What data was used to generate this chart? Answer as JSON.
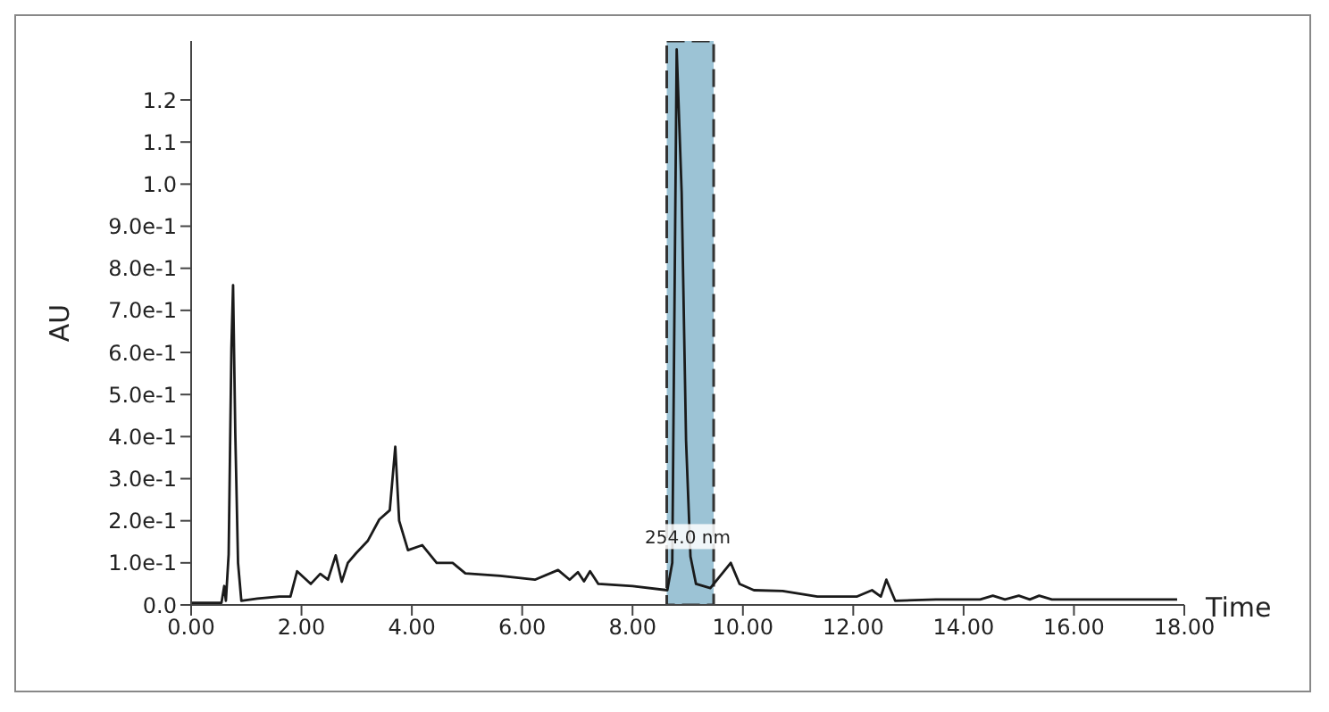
{
  "chart_data": {
    "type": "line",
    "xlabel": "Time",
    "ylabel": "AU",
    "x": [
      0,
      0.55,
      0.6,
      0.63,
      0.68,
      0.73,
      0.76,
      0.8,
      0.85,
      0.91,
      1.2,
      1.6,
      1.8,
      1.92,
      2.17,
      2.34,
      2.48,
      2.62,
      2.73,
      2.84,
      2.99,
      3.2,
      3.41,
      3.6,
      3.7,
      3.77,
      3.93,
      4.19,
      4.45,
      4.74,
      4.97,
      5.6,
      6.23,
      6.65,
      6.86,
      7.01,
      7.12,
      7.23,
      7.38,
      8.0,
      8.63,
      8.72,
      8.8,
      8.89,
      8.97,
      9.05,
      9.15,
      9.41,
      9.78,
      9.94,
      10.2,
      10.72,
      11.35,
      12.07,
      12.34,
      12.5,
      12.6,
      12.76,
      13.5,
      14.3,
      14.53,
      14.75,
      15.0,
      15.2,
      15.37,
      15.6,
      17.87
    ],
    "series": [
      {
        "color": "#1a1a1a",
        "values": [
          0.005,
          0.005,
          0.045,
          0.01,
          0.12,
          0.61,
          0.76,
          0.41,
          0.1,
          0.01,
          0.015,
          0.02,
          0.02,
          0.08,
          0.05,
          0.074,
          0.06,
          0.118,
          0.055,
          0.1,
          0.123,
          0.152,
          0.203,
          0.225,
          0.376,
          0.2,
          0.13,
          0.142,
          0.1,
          0.1,
          0.075,
          0.069,
          0.06,
          0.083,
          0.06,
          0.078,
          0.056,
          0.08,
          0.05,
          0.045,
          0.035,
          0.1,
          1.32,
          0.98,
          0.39,
          0.115,
          0.05,
          0.04,
          0.1,
          0.05,
          0.035,
          0.033,
          0.02,
          0.02,
          0.035,
          0.02,
          0.06,
          0.01,
          0.013,
          0.013,
          0.022,
          0.013,
          0.022,
          0.013,
          0.022,
          0.013,
          0.013
        ]
      }
    ],
    "xlim": [
      0,
      18
    ],
    "xticks": [
      {
        "value": 0,
        "label": "0.00"
      },
      {
        "value": 2,
        "label": "2.00"
      },
      {
        "value": 4,
        "label": "4.00"
      },
      {
        "value": 6,
        "label": "6.00"
      },
      {
        "value": 8,
        "label": "8.00"
      },
      {
        "value": 10,
        "label": "10.00"
      },
      {
        "value": 12,
        "label": "12.00"
      },
      {
        "value": 14,
        "label": "14.00"
      },
      {
        "value": 16,
        "label": "16.00"
      },
      {
        "value": 18,
        "label": "18.00"
      }
    ],
    "ylim": [
      0,
      1.34
    ],
    "yticks": [
      {
        "value": 0,
        "label": "0.0"
      },
      {
        "value": 0.1,
        "label": "1.0e-1"
      },
      {
        "value": 0.2,
        "label": "2.0e-1"
      },
      {
        "value": 0.3,
        "label": "3.0e-1"
      },
      {
        "value": 0.4,
        "label": "4.0e-1"
      },
      {
        "value": 0.5,
        "label": "5.0e-1"
      },
      {
        "value": 0.6,
        "label": "6.0e-1"
      },
      {
        "value": 0.7,
        "label": "7.0e-1"
      },
      {
        "value": 0.8,
        "label": "8.0e-1"
      },
      {
        "value": 0.9,
        "label": "9.0e-1"
      },
      {
        "value": 1.0,
        "label": "1.0"
      },
      {
        "value": 1.1,
        "label": "1.1"
      },
      {
        "value": 1.2,
        "label": "1.2"
      }
    ],
    "bands": [
      {
        "axis": "x",
        "from": 8.62,
        "to": 9.47,
        "color": "#9cc3d5"
      }
    ],
    "annotations": [
      {
        "text": "254.0 nm",
        "x": 9.0,
        "y": 0.12
      }
    ],
    "grid": false,
    "legend": false,
    "marker": "none",
    "line_style": "solid"
  }
}
